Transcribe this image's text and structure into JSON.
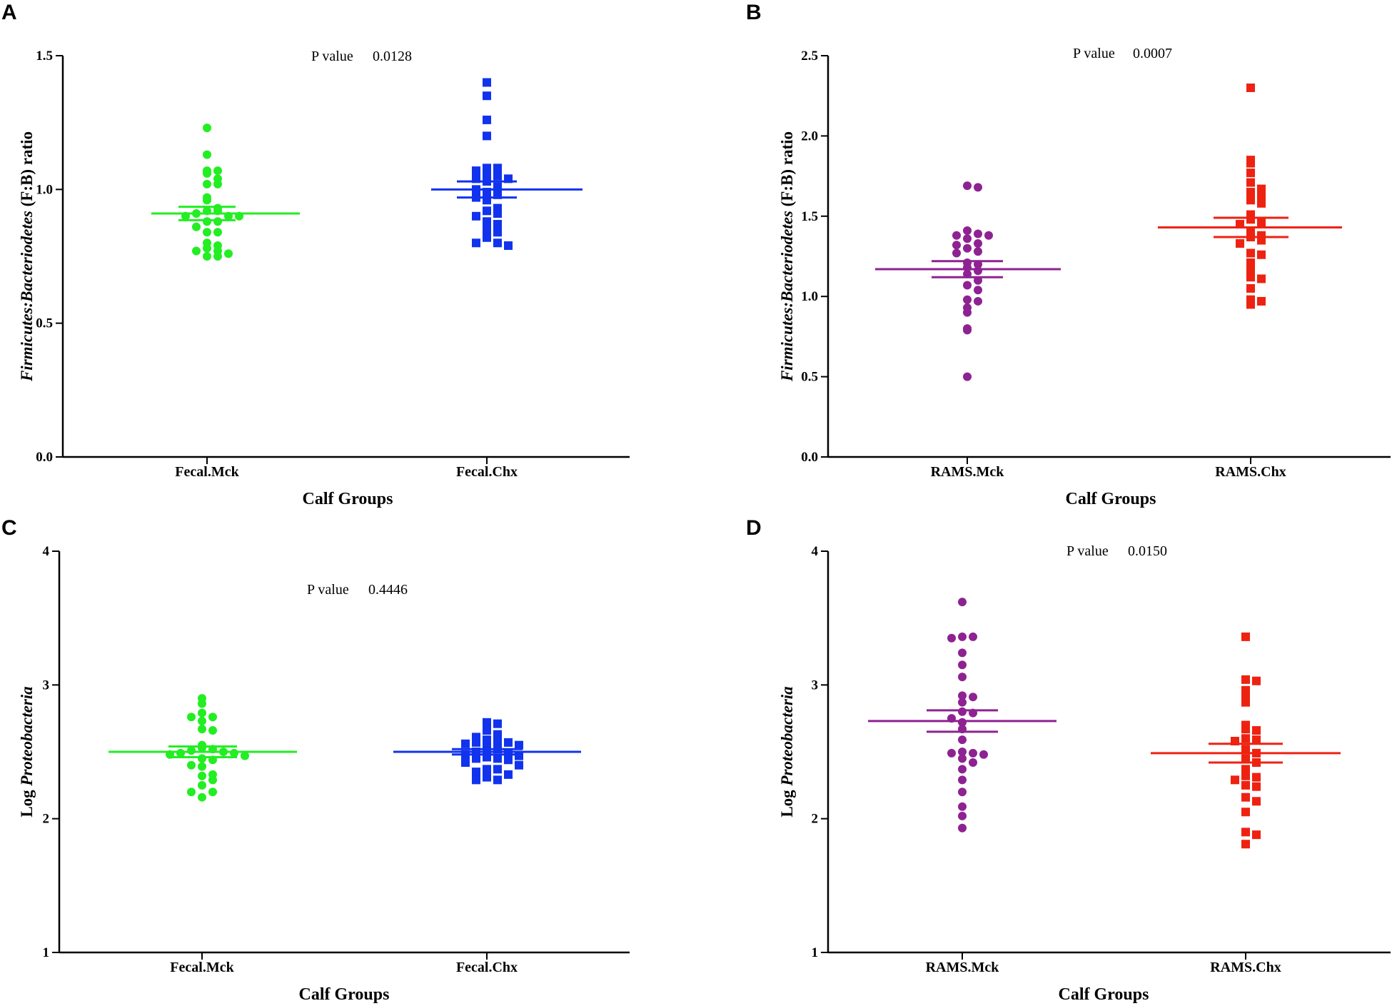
{
  "chart_data": [
    {
      "panel": "A",
      "type": "scatter",
      "ylabel_italic": "Firmicutes:Bacteriodetes",
      "ylabel_plain": " (F:B) ratio",
      "xlabel": "Calf Groups",
      "ylim": [
        0,
        1.5
      ],
      "yticks": [
        0,
        0.5,
        1.0,
        1.5
      ],
      "ytick_labels": [
        "0.0",
        "0.5",
        "1.0",
        "1.5"
      ],
      "p_label": "P value",
      "p_value": "0.0128",
      "categories": [
        "Fecal.Mck",
        "Fecal.Chx"
      ],
      "series": [
        {
          "name": "Fecal.Mck",
          "color": "#22ee22",
          "marker": "circle",
          "mean": 0.91,
          "sem": 0.025,
          "values": [
            1.23,
            1.13,
            1.07,
            1.06,
            1.07,
            1.04,
            1.02,
            1.02,
            0.97,
            0.96,
            0.93,
            0.92,
            0.92,
            0.91,
            0.9,
            0.9,
            0.9,
            0.88,
            0.88,
            0.86,
            0.84,
            0.84,
            0.8,
            0.79,
            0.78,
            0.77,
            0.77,
            0.76,
            0.75,
            0.75
          ]
        },
        {
          "name": "Fecal.Chx",
          "color": "#1133ee",
          "marker": "square",
          "mean": 1.0,
          "sem": 0.03,
          "values": [
            1.4,
            1.35,
            1.26,
            1.2,
            1.08,
            1.08,
            1.07,
            1.05,
            1.05,
            1.04,
            1.04,
            1.03,
            1.01,
            1.0,
            0.99,
            0.98,
            0.97,
            0.96,
            0.93,
            0.92,
            0.91,
            0.9,
            0.88,
            0.87,
            0.85,
            0.84,
            0.82,
            0.8,
            0.8,
            0.79
          ]
        }
      ]
    },
    {
      "panel": "B",
      "type": "scatter",
      "ylabel_italic": "Firmicutes:Bacteriodetes",
      "ylabel_plain": " (F:B) ratio",
      "xlabel": "Calf Groups",
      "ylim": [
        0,
        2.5
      ],
      "yticks": [
        0,
        0.5,
        1.0,
        1.5,
        2.0,
        2.5
      ],
      "ytick_labels": [
        "0.0",
        "0.5",
        "1.0",
        "1.5",
        "2.0",
        "2.5"
      ],
      "p_label": "P value",
      "p_value": "0.0007",
      "categories": [
        "RAMS.Mck",
        "RAMS.Chx"
      ],
      "series": [
        {
          "name": "RAMS.Mck",
          "color": "#8e2292",
          "marker": "circle",
          "mean": 1.17,
          "sem": 0.05,
          "values": [
            1.69,
            1.68,
            1.41,
            1.39,
            1.38,
            1.38,
            1.36,
            1.33,
            1.32,
            1.3,
            1.28,
            1.27,
            1.21,
            1.2,
            1.18,
            1.16,
            1.14,
            1.1,
            1.07,
            1.04,
            0.98,
            0.97,
            0.93,
            0.9,
            0.8,
            0.79,
            0.5
          ]
        },
        {
          "name": "RAMS.Chx",
          "color": "#ee2211",
          "marker": "square",
          "mean": 1.43,
          "sem": 0.06,
          "values": [
            2.3,
            1.85,
            1.83,
            1.77,
            1.71,
            1.67,
            1.65,
            1.63,
            1.6,
            1.58,
            1.51,
            1.48,
            1.46,
            1.45,
            1.41,
            1.38,
            1.37,
            1.35,
            1.33,
            1.27,
            1.26,
            1.21,
            1.17,
            1.12,
            1.11,
            1.05,
            0.98,
            0.97,
            0.95
          ]
        }
      ]
    },
    {
      "panel": "C",
      "type": "scatter",
      "ylabel_italic": "Proteobacteria",
      "ylabel_plain": "Log ",
      "xlabel": "Calf Groups",
      "ylim": [
        1,
        4
      ],
      "yticks": [
        1,
        2,
        3,
        4
      ],
      "ytick_labels": [
        "1",
        "2",
        "3",
        "4"
      ],
      "p_label": "P value",
      "p_value": "0.4446",
      "categories": [
        "Fecal.Mck",
        "Fecal.Chx"
      ],
      "series": [
        {
          "name": "Fecal.Mck",
          "color": "#22ee22",
          "marker": "circle",
          "mean": 2.5,
          "sem": 0.04,
          "values": [
            2.9,
            2.86,
            2.79,
            2.76,
            2.76,
            2.73,
            2.67,
            2.66,
            2.55,
            2.53,
            2.52,
            2.51,
            2.5,
            2.49,
            2.49,
            2.48,
            2.47,
            2.45,
            2.44,
            2.4,
            2.39,
            2.33,
            2.32,
            2.29,
            2.25,
            2.2,
            2.2,
            2.16
          ]
        },
        {
          "name": "Fecal.Chx",
          "color": "#1133ee",
          "marker": "square",
          "mean": 2.5,
          "sem": 0.02,
          "values": [
            2.72,
            2.71,
            2.66,
            2.63,
            2.61,
            2.59,
            2.57,
            2.57,
            2.57,
            2.56,
            2.55,
            2.53,
            2.52,
            2.5,
            2.49,
            2.48,
            2.47,
            2.46,
            2.45,
            2.45,
            2.44,
            2.42,
            2.4,
            2.37,
            2.37,
            2.35,
            2.33,
            2.31,
            2.29,
            2.29
          ]
        }
      ]
    },
    {
      "panel": "D",
      "type": "scatter",
      "ylabel_italic": "Proteobacteria",
      "ylabel_plain": "Log ",
      "xlabel": "Calf Groups",
      "ylim": [
        1,
        4
      ],
      "yticks": [
        1,
        2,
        3,
        4
      ],
      "ytick_labels": [
        "1",
        "2",
        "3",
        "4"
      ],
      "p_label": "P value",
      "p_value": "0.0150",
      "categories": [
        "RAMS.Mck",
        "RAMS.Chx"
      ],
      "series": [
        {
          "name": "RAMS.Mck",
          "color": "#8e2292",
          "marker": "circle",
          "mean": 2.73,
          "sem": 0.08,
          "values": [
            3.62,
            3.36,
            3.36,
            3.35,
            3.24,
            3.15,
            3.06,
            2.92,
            2.91,
            2.87,
            2.8,
            2.79,
            2.75,
            2.72,
            2.67,
            2.59,
            2.5,
            2.49,
            2.49,
            2.48,
            2.45,
            2.42,
            2.37,
            2.29,
            2.2,
            2.09,
            2.02,
            1.93
          ]
        },
        {
          "name": "RAMS.Chx",
          "color": "#ee2211",
          "marker": "square",
          "mean": 2.49,
          "sem": 0.07,
          "values": [
            3.36,
            3.04,
            3.03,
            2.96,
            2.93,
            2.87,
            2.7,
            2.67,
            2.66,
            2.6,
            2.59,
            2.58,
            2.52,
            2.49,
            2.45,
            2.42,
            2.37,
            2.32,
            2.31,
            2.29,
            2.25,
            2.24,
            2.16,
            2.13,
            2.05,
            1.9,
            1.88,
            1.81
          ]
        }
      ]
    }
  ]
}
